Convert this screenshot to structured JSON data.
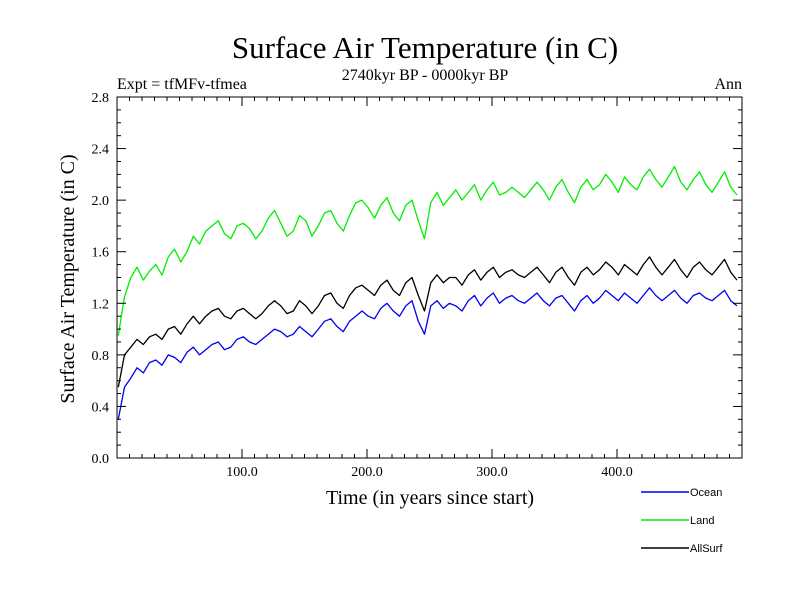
{
  "chart_data": {
    "type": "line",
    "title": "Surface Air Temperature (in C)",
    "subtitle": "2740kyr BP - 0000kyr BP",
    "left_label": "Expt = tfMFv-tfmea",
    "right_label": "Ann",
    "xlabel": "Time (in years since start)",
    "ylabel": "Surface Air Temperature (in C)",
    "xlim": [
      0,
      500
    ],
    "ylim": [
      0.0,
      2.8
    ],
    "x_ticks": [
      100,
      200,
      300,
      400
    ],
    "x_tick_labels": [
      "100.0",
      "200.0",
      "300.0",
      "400.0"
    ],
    "y_ticks": [
      0.0,
      0.4,
      0.8,
      1.2,
      1.6,
      2.0,
      2.4,
      2.8
    ],
    "y_tick_labels": [
      "0.0",
      "0.4",
      "0.8",
      "1.2",
      "1.6",
      "2.0",
      "2.4",
      "2.8"
    ],
    "x_start": 1,
    "x_step": 5,
    "series": [
      {
        "name": "Ocean",
        "color": "#0000ee",
        "values": [
          0.3,
          0.55,
          0.62,
          0.7,
          0.66,
          0.74,
          0.76,
          0.72,
          0.8,
          0.78,
          0.74,
          0.82,
          0.86,
          0.8,
          0.84,
          0.88,
          0.9,
          0.84,
          0.86,
          0.92,
          0.94,
          0.9,
          0.88,
          0.92,
          0.96,
          1.0,
          0.98,
          0.94,
          0.96,
          1.02,
          0.98,
          0.94,
          1.0,
          1.06,
          1.08,
          1.02,
          0.98,
          1.06,
          1.1,
          1.14,
          1.1,
          1.08,
          1.16,
          1.2,
          1.14,
          1.1,
          1.18,
          1.22,
          1.06,
          0.96,
          1.18,
          1.22,
          1.16,
          1.2,
          1.18,
          1.14,
          1.22,
          1.26,
          1.18,
          1.24,
          1.28,
          1.2,
          1.24,
          1.26,
          1.22,
          1.2,
          1.24,
          1.28,
          1.22,
          1.18,
          1.24,
          1.26,
          1.2,
          1.14,
          1.22,
          1.26,
          1.2,
          1.24,
          1.3,
          1.26,
          1.22,
          1.28,
          1.24,
          1.2,
          1.26,
          1.32,
          1.26,
          1.22,
          1.26,
          1.3,
          1.24,
          1.2,
          1.26,
          1.28,
          1.24,
          1.22,
          1.26,
          1.3,
          1.22,
          1.18
        ]
      },
      {
        "name": "Land",
        "color": "#00ee00",
        "values": [
          0.95,
          1.25,
          1.4,
          1.48,
          1.38,
          1.45,
          1.5,
          1.42,
          1.56,
          1.62,
          1.52,
          1.6,
          1.72,
          1.66,
          1.76,
          1.8,
          1.84,
          1.74,
          1.7,
          1.8,
          1.82,
          1.78,
          1.7,
          1.76,
          1.86,
          1.92,
          1.82,
          1.72,
          1.76,
          1.88,
          1.84,
          1.72,
          1.8,
          1.9,
          1.92,
          1.82,
          1.76,
          1.88,
          1.98,
          2.0,
          1.94,
          1.86,
          1.96,
          2.02,
          1.9,
          1.84,
          1.96,
          2.0,
          1.84,
          1.7,
          1.98,
          2.06,
          1.96,
          2.02,
          2.08,
          2.0,
          2.06,
          2.12,
          2.0,
          2.08,
          2.14,
          2.04,
          2.06,
          2.1,
          2.06,
          2.02,
          2.08,
          2.14,
          2.08,
          2.0,
          2.1,
          2.16,
          2.06,
          1.98,
          2.1,
          2.16,
          2.08,
          2.12,
          2.2,
          2.14,
          2.06,
          2.18,
          2.12,
          2.08,
          2.18,
          2.24,
          2.16,
          2.1,
          2.18,
          2.26,
          2.14,
          2.08,
          2.16,
          2.22,
          2.12,
          2.06,
          2.14,
          2.22,
          2.1,
          2.04
        ]
      },
      {
        "name": "AllSurf",
        "color": "#000000",
        "values": [
          0.55,
          0.8,
          0.86,
          0.92,
          0.88,
          0.94,
          0.96,
          0.92,
          1.0,
          1.02,
          0.96,
          1.04,
          1.1,
          1.04,
          1.1,
          1.14,
          1.16,
          1.1,
          1.08,
          1.14,
          1.16,
          1.12,
          1.08,
          1.12,
          1.18,
          1.22,
          1.18,
          1.12,
          1.14,
          1.22,
          1.18,
          1.12,
          1.18,
          1.26,
          1.28,
          1.2,
          1.16,
          1.26,
          1.32,
          1.34,
          1.3,
          1.26,
          1.34,
          1.38,
          1.3,
          1.26,
          1.36,
          1.4,
          1.26,
          1.14,
          1.36,
          1.42,
          1.36,
          1.4,
          1.4,
          1.34,
          1.42,
          1.46,
          1.38,
          1.44,
          1.48,
          1.4,
          1.44,
          1.46,
          1.42,
          1.4,
          1.44,
          1.48,
          1.42,
          1.36,
          1.44,
          1.48,
          1.4,
          1.34,
          1.44,
          1.48,
          1.42,
          1.46,
          1.52,
          1.48,
          1.42,
          1.5,
          1.46,
          1.42,
          1.5,
          1.56,
          1.48,
          1.42,
          1.48,
          1.54,
          1.46,
          1.4,
          1.48,
          1.52,
          1.46,
          1.42,
          1.48,
          1.54,
          1.44,
          1.38
        ]
      }
    ],
    "legend_position": "bottom-right",
    "legend": [
      "Ocean",
      "Land",
      "AllSurf"
    ]
  }
}
